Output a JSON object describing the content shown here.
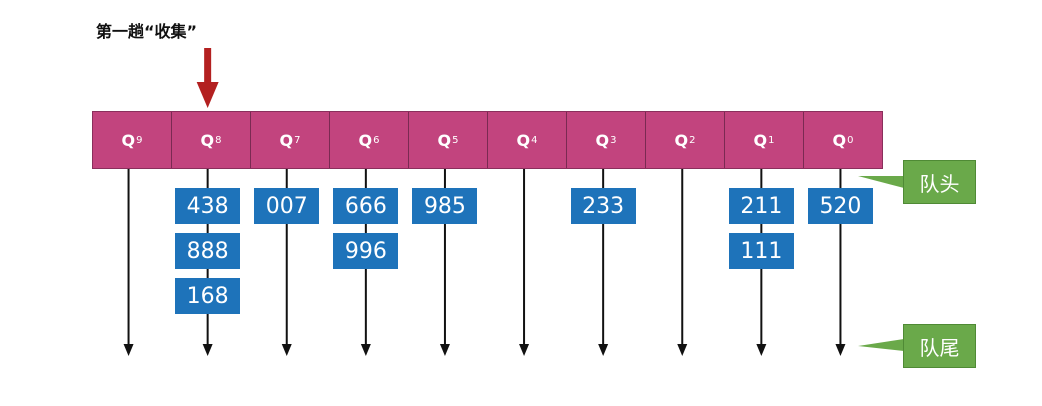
{
  "title": "第一趟“收集”",
  "buckets": [
    {
      "q": "Q",
      "sub": "9"
    },
    {
      "q": "Q",
      "sub": "8"
    },
    {
      "q": "Q",
      "sub": "7"
    },
    {
      "q": "Q",
      "sub": "6"
    },
    {
      "q": "Q",
      "sub": "5"
    },
    {
      "q": "Q",
      "sub": "4"
    },
    {
      "q": "Q",
      "sub": "3"
    },
    {
      "q": "Q",
      "sub": "2"
    },
    {
      "q": "Q",
      "sub": "1"
    },
    {
      "q": "Q",
      "sub": "0"
    }
  ],
  "stacks": [
    [],
    [
      "438",
      "888",
      "168"
    ],
    [
      "007"
    ],
    [
      "666",
      "996"
    ],
    [
      "985"
    ],
    [],
    [
      "233"
    ],
    [],
    [
      "211",
      "111"
    ],
    [
      "520"
    ]
  ],
  "labels": {
    "head": "队头",
    "tail": "队尾"
  },
  "colors": {
    "bucket": "#c2447e",
    "number_box": "#1e73ba",
    "label_box": "#6aa94a",
    "arrow": "#b32020"
  },
  "pointer": {
    "bucket_index": 1,
    "icon": "down-arrow-icon"
  }
}
